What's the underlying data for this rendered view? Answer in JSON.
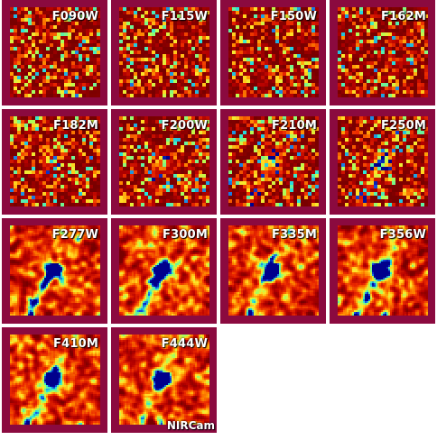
{
  "filters": [
    "F090W",
    "F115W",
    "F150W",
    "F162M",
    "F182M",
    "F200W",
    "F210M",
    "F250M",
    "F277W",
    "F300M",
    "F335M",
    "F356W",
    "F410M",
    "F444W"
  ],
  "instrument": "NIRCam",
  "colors": {
    "frame": "#8b0a3f",
    "background": "#ffffff"
  }
}
